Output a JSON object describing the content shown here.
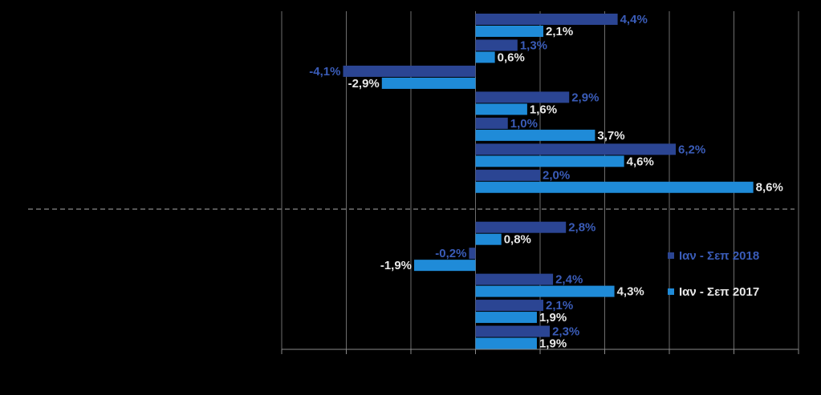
{
  "chart_data": {
    "type": "bar",
    "orientation": "horizontal",
    "categories": [
      null,
      null,
      null,
      null,
      null,
      null,
      null,
      null,
      null,
      null,
      null,
      null
    ],
    "series": [
      {
        "name": "Ιαν - Σεπ 2018",
        "color": "#2b4593",
        "label_color": "#3a5cb8",
        "values": [
          4.4,
          1.3,
          -4.1,
          2.9,
          1.0,
          6.2,
          2.0,
          2.8,
          -0.2,
          2.4,
          2.1,
          2.3
        ],
        "value_labels": [
          "4,4%",
          "1,3%",
          "-4,1%",
          "2,9%",
          "1,0%",
          "6,2%",
          "2,0%",
          "2,8%",
          "-0,2%",
          "2,4%",
          "2,1%",
          "2,3%"
        ]
      },
      {
        "name": "Ιαν - Σεπ 2017",
        "color": "#1f8bd8",
        "label_color": "#e8e8e8",
        "values": [
          2.1,
          0.6,
          -2.9,
          1.6,
          3.7,
          4.6,
          8.6,
          0.8,
          -1.9,
          4.3,
          1.9,
          1.9
        ],
        "value_labels": [
          "2,1%",
          "0,6%",
          "-2,9%",
          "1,6%",
          "3,7%",
          "4,6%",
          "8,6%",
          "0,8%",
          "-1,9%",
          "4,3%",
          "1,9%",
          "1,9%"
        ]
      }
    ],
    "xlim": [
      -6,
      10
    ],
    "xticks": [
      -6,
      -4,
      -2,
      0,
      2,
      4,
      6,
      8,
      10
    ],
    "grid": true,
    "legend": "right"
  }
}
